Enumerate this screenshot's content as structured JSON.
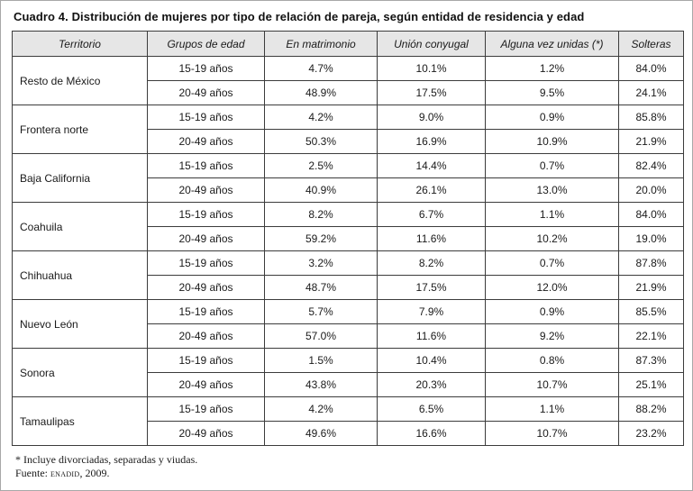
{
  "title": "Cuadro 4. Distribución de mujeres por tipo de relación de pareja, según entidad de residencia y edad",
  "table": {
    "headers": [
      "Territorio",
      "Grupos de edad",
      "En matrimonio",
      "Unión conyugal",
      "Alguna vez unidas (*)",
      "Solteras"
    ],
    "rows": [
      {
        "territory": "Resto de México",
        "groups": [
          {
            "age": "15-19 años",
            "values": [
              "4.7%",
              "10.1%",
              "1.2%",
              "84.0%"
            ]
          },
          {
            "age": "20-49 años",
            "values": [
              "48.9%",
              "17.5%",
              "9.5%",
              "24.1%"
            ]
          }
        ]
      },
      {
        "territory": "Frontera norte",
        "groups": [
          {
            "age": "15-19 años",
            "values": [
              "4.2%",
              "9.0%",
              "0.9%",
              "85.8%"
            ]
          },
          {
            "age": "20-49 años",
            "values": [
              "50.3%",
              "16.9%",
              "10.9%",
              "21.9%"
            ]
          }
        ]
      },
      {
        "territory": "Baja California",
        "groups": [
          {
            "age": "15-19 años",
            "values": [
              "2.5%",
              "14.4%",
              "0.7%",
              "82.4%"
            ]
          },
          {
            "age": "20-49 años",
            "values": [
              "40.9%",
              "26.1%",
              "13.0%",
              "20.0%"
            ]
          }
        ]
      },
      {
        "territory": "Coahuila",
        "groups": [
          {
            "age": "15-19 años",
            "values": [
              "8.2%",
              "6.7%",
              "1.1%",
              "84.0%"
            ]
          },
          {
            "age": "20-49 años",
            "values": [
              "59.2%",
              "11.6%",
              "10.2%",
              "19.0%"
            ]
          }
        ]
      },
      {
        "territory": "Chihuahua",
        "groups": [
          {
            "age": "15-19 años",
            "values": [
              "3.2%",
              "8.2%",
              "0.7%",
              "87.8%"
            ]
          },
          {
            "age": "20-49 años",
            "values": [
              "48.7%",
              "17.5%",
              "12.0%",
              "21.9%"
            ]
          }
        ]
      },
      {
        "territory": "Nuevo León",
        "groups": [
          {
            "age": "15-19 años",
            "values": [
              "5.7%",
              "7.9%",
              "0.9%",
              "85.5%"
            ]
          },
          {
            "age": "20-49 años",
            "values": [
              "57.0%",
              "11.6%",
              "9.2%",
              "22.1%"
            ]
          }
        ]
      },
      {
        "territory": "Sonora",
        "groups": [
          {
            "age": "15-19 años",
            "values": [
              "1.5%",
              "10.4%",
              "0.8%",
              "87.3%"
            ]
          },
          {
            "age": "20-49 años",
            "values": [
              "43.8%",
              "20.3%",
              "10.7%",
              "25.1%"
            ]
          }
        ]
      },
      {
        "territory": "Tamaulipas",
        "groups": [
          {
            "age": "15-19 años",
            "values": [
              "4.2%",
              "6.5%",
              "1.1%",
              "88.2%"
            ]
          },
          {
            "age": "20-49 años",
            "values": [
              "49.6%",
              "16.6%",
              "10.7%",
              "23.2%"
            ]
          }
        ]
      }
    ]
  },
  "footnotes": {
    "note1": "* Incluye divorciadas, separadas y viudas.",
    "note2_prefix": "Fuente: ",
    "note2_source": "enadid",
    "note2_suffix": ", 2009."
  }
}
